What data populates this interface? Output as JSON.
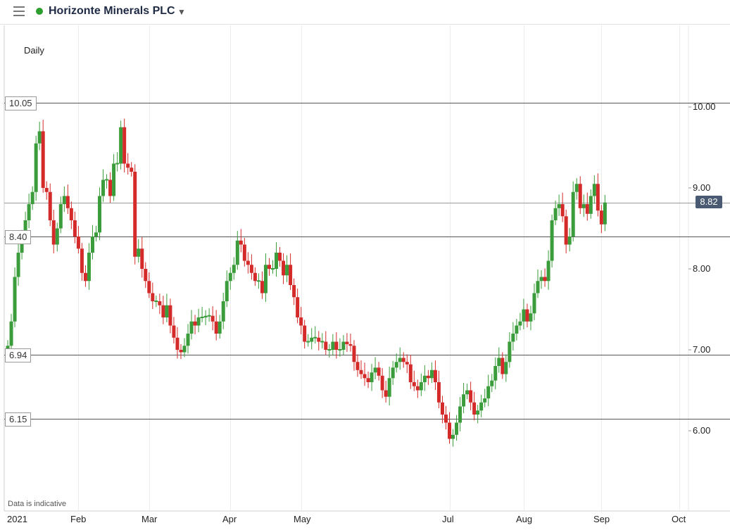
{
  "header": {
    "title": "Horizonte Minerals PLC",
    "status_color": "#2e9e2e",
    "menu_icon": "hamburger-menu-icon",
    "dropdown_icon": "caret-down-icon"
  },
  "period_label": "Daily",
  "disclaimer": "Data is indicative",
  "last_price_label": "8.82",
  "colors": {
    "up": "#3a9c3a",
    "down": "#d42a2a",
    "last_badge": "#4a5a72"
  },
  "chart_data": {
    "type": "candlestick",
    "ylim": [
      5.5,
      10.35
    ],
    "y_ticks": [
      {
        "value": 10.0,
        "label": "10.00"
      },
      {
        "value": 9.0,
        "label": "9.00"
      },
      {
        "value": 8.0,
        "label": "8.00"
      },
      {
        "value": 7.0,
        "label": "7.00"
      },
      {
        "value": 6.0,
        "label": "6.00"
      }
    ],
    "x_ticks": [
      {
        "label": "2021",
        "index": 0
      },
      {
        "label": "Feb",
        "index": 20
      },
      {
        "label": "Mar",
        "index": 40
      },
      {
        "label": "Apr",
        "index": 63
      },
      {
        "label": "May",
        "index": 83
      },
      {
        "label": "Jul",
        "index": 125
      },
      {
        "label": "Aug",
        "index": 146
      },
      {
        "label": "Sep",
        "index": 168
      },
      {
        "label": "Oct",
        "index": 190
      }
    ],
    "horizontal_levels": [
      {
        "value": 10.05,
        "label": "10.05",
        "side": "left"
      },
      {
        "value": 8.4,
        "label": "8.40",
        "side": "left"
      },
      {
        "value": 6.94,
        "label": "6.94",
        "side": "left"
      },
      {
        "value": 6.15,
        "label": "6.15",
        "side": "left"
      },
      {
        "value": 8.82,
        "label": "8.82",
        "side": "right"
      }
    ],
    "close_prices": [
      7.05,
      7.35,
      7.9,
      8.2,
      8.4,
      8.6,
      8.8,
      8.95,
      9.55,
      9.7,
      9.0,
      8.95,
      8.6,
      8.3,
      8.5,
      8.8,
      8.9,
      8.75,
      8.6,
      8.4,
      8.25,
      7.95,
      7.85,
      8.2,
      8.4,
      8.45,
      8.9,
      9.1,
      9.1,
      8.9,
      9.3,
      9.3,
      9.75,
      9.3,
      9.25,
      9.2,
      8.15,
      8.25,
      8.0,
      7.85,
      7.7,
      7.6,
      7.6,
      7.55,
      7.4,
      7.55,
      7.3,
      7.15,
      7.0,
      6.97,
      7.05,
      7.2,
      7.35,
      7.3,
      7.4,
      7.4,
      7.42,
      7.42,
      7.35,
      7.2,
      7.35,
      7.6,
      7.85,
      7.95,
      8.05,
      8.35,
      8.3,
      8.1,
      8.05,
      7.95,
      7.85,
      7.85,
      7.7,
      8.05,
      8.0,
      8.0,
      8.2,
      8.1,
      7.92,
      8.05,
      7.8,
      7.65,
      7.4,
      7.3,
      7.1,
      7.1,
      7.15,
      7.15,
      7.1,
      7.1,
      7.0,
      7.0,
      7.1,
      7.0,
      7.0,
      7.1,
      7.07,
      7.05,
      6.85,
      6.75,
      6.7,
      6.65,
      6.6,
      6.72,
      6.78,
      6.68,
      6.5,
      6.42,
      6.65,
      6.78,
      6.85,
      6.9,
      6.85,
      6.82,
      6.6,
      6.55,
      6.5,
      6.6,
      6.68,
      6.65,
      6.75,
      6.6,
      6.35,
      6.2,
      6.1,
      5.9,
      5.95,
      6.1,
      6.3,
      6.45,
      6.5,
      6.35,
      6.2,
      6.25,
      6.35,
      6.4,
      6.55,
      6.62,
      6.8,
      6.9,
      6.7,
      6.85,
      7.1,
      7.2,
      7.3,
      7.35,
      7.5,
      7.35,
      7.45,
      7.7,
      7.85,
      7.9,
      7.85,
      8.1,
      8.6,
      8.75,
      8.8,
      8.65,
      8.3,
      8.4,
      8.95,
      9.05,
      8.75,
      8.8,
      8.68,
      8.9,
      9.05,
      8.72,
      8.55,
      8.82
    ]
  }
}
